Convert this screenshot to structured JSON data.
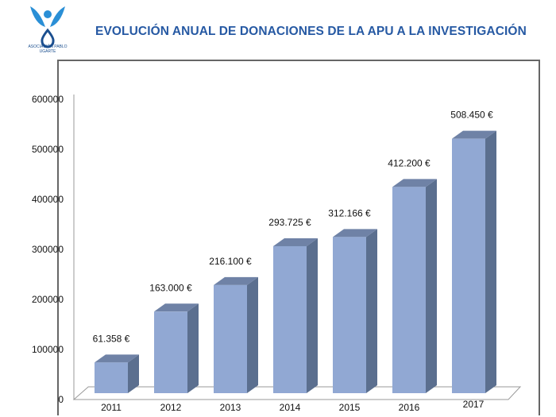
{
  "logo": {
    "text": "ASOCIACIÓN PABLO UGARTE",
    "colors": [
      "#2a8fd6",
      "#1b4f8f"
    ]
  },
  "title": "EVOLUCIÓN ANUAL DE DONACIONES DE LA APU A LA INVESTIGACIÓN",
  "chart_data": {
    "type": "bar",
    "title": "EVOLUCIÓN ANUAL DE DONACIONES DE LA APU A LA INVESTIGACIÓN",
    "categories": [
      "2011",
      "2012",
      "2013",
      "2014",
      "2015",
      "2016",
      "2017"
    ],
    "values": [
      61358,
      163000,
      216100,
      293725,
      312166,
      412200,
      508450
    ],
    "data_labels": [
      "61.358 €",
      "163.000 €",
      "216.100 €",
      "293.725 €",
      "312.166 €",
      "412.200 €",
      "508.450 €"
    ],
    "ylim": [
      0,
      600000
    ],
    "yticks": [
      "0",
      "100000",
      "200000",
      "300000",
      "400000",
      "500000",
      "600000"
    ],
    "grid": false,
    "style": "3d",
    "colors": {
      "front": "#91a8d3",
      "side": "#5b6f8f",
      "top": "#6f82a6"
    }
  }
}
